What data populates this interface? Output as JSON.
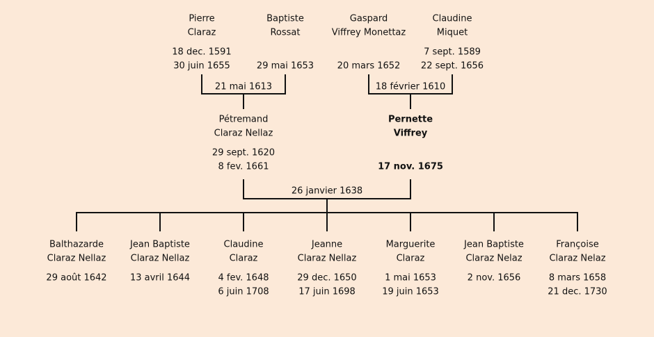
{
  "grandparents": [
    {
      "name": [
        "Pierre",
        "Claraz"
      ],
      "dates": [
        "18 dec. 1591",
        "30 juin 1655"
      ]
    },
    {
      "name": [
        "Baptiste",
        "Rossat"
      ],
      "dates": [
        "29 mai 1653"
      ]
    },
    {
      "name": [
        "Gaspard",
        "Viffrey Monettaz"
      ],
      "dates": [
        "20 mars 1652"
      ]
    },
    {
      "name": [
        "Claudine",
        "Miquet"
      ],
      "dates": [
        "7 sept. 1589",
        "22 sept. 1656"
      ]
    }
  ],
  "grandparent_marriages": [
    {
      "date": "21 mai 1613"
    },
    {
      "date": "18 février 1610"
    }
  ],
  "parents": [
    {
      "name": [
        "Pétremand",
        "Claraz Nellaz"
      ],
      "dates": [
        "29 sept. 1620",
        "8 fev. 1661"
      ]
    },
    {
      "name": [
        "Pernette",
        "Viffrey"
      ],
      "dates": [
        "17 nov. 1675"
      ],
      "highlight": true
    }
  ],
  "parents_marriage": {
    "date": "26 janvier 1638"
  },
  "children": [
    {
      "name": [
        "Balthazarde",
        "Claraz Nellaz"
      ],
      "dates": [
        "29 août 1642"
      ]
    },
    {
      "name": [
        "Jean Baptiste",
        "Claraz Nellaz"
      ],
      "dates": [
        "13 avril 1644"
      ]
    },
    {
      "name": [
        "Claudine",
        "Claraz"
      ],
      "dates": [
        "4 fev. 1648",
        "6 juin 1708"
      ]
    },
    {
      "name": [
        "Jeanne",
        "Claraz Nellaz"
      ],
      "dates": [
        "29 dec. 1650",
        "17 juin 1698"
      ]
    },
    {
      "name": [
        "Marguerite",
        "Claraz"
      ],
      "dates": [
        "1 mai 1653",
        "19 juin 1653"
      ]
    },
    {
      "name": [
        "Jean Baptiste",
        "Claraz Nelaz"
      ],
      "dates": [
        "2 nov. 1656"
      ]
    },
    {
      "name": [
        "Françoise",
        "Claraz Nelaz"
      ],
      "dates": [
        "8 mars 1658",
        "21 dec. 1730"
      ]
    }
  ]
}
